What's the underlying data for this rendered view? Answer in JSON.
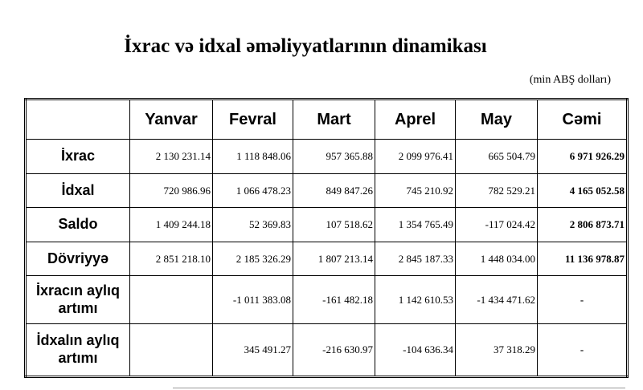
{
  "header": {
    "title": "İxrac və idxal əməliyyatlarının dinamikası",
    "unit": "(min ABŞ dolları)"
  },
  "table": {
    "columns": [
      "Yanvar",
      "Fevral",
      "Mart",
      "Aprel",
      "May",
      "Cəmi"
    ],
    "rows": [
      [
        "İxrac",
        "2 130 231.14",
        "1 118 848.06",
        "957 365.88",
        "2 099 976.41",
        "665 504.79",
        "6 971 926.29"
      ],
      [
        "İdxal",
        "720 986.96",
        "1 066 478.23",
        "849 847.26",
        "745 210.92",
        "782 529.21",
        "4 165 052.58"
      ],
      [
        "Saldo",
        "1 409 244.18",
        "52 369.83",
        "107 518.62",
        "1 354 765.49",
        "-117 024.42",
        "2 806 873.71"
      ],
      [
        "Dövriyyə",
        "2 851 218.10",
        "2 185 326.29",
        "1 807 213.14",
        "2 845 187.33",
        "1 448 034.00",
        "11 136 978.87"
      ],
      [
        "İxracın aylıq artımı",
        null,
        "-1 011 383.08",
        "-161 482.18",
        "1 142 610.53",
        "-1 434 471.62",
        "-"
      ],
      [
        "İdxalın aylıq artımı",
        null,
        "345 491.27",
        "-216 630.97",
        "-104 636.34",
        "37 318.29",
        "-"
      ]
    ]
  }
}
